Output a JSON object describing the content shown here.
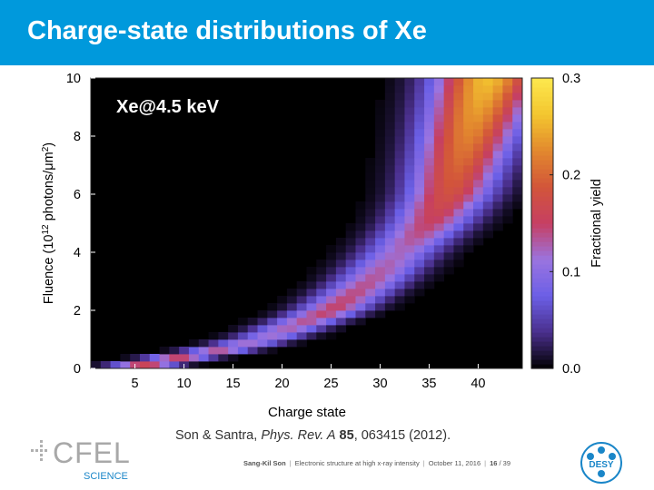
{
  "slide": {
    "title": "Charge-state distributions of Xe",
    "reference": {
      "authors": "Son & Santra, ",
      "journal": "Phys. Rev. A",
      "volume": "85",
      "rest": ", 063415 (2012)."
    },
    "footer": {
      "author": "Sang-Kil Son",
      "talk": "Electronic structure at high x-ray intensity",
      "date": "October 11, 2016",
      "page": "16",
      "total": "/ 39"
    },
    "logos": {
      "cfel_text": "CFEL",
      "cfel_subtext": "SCIENCE",
      "desy_text": "DESY"
    },
    "colors": {
      "title_bar": "#0099dc",
      "title_text": "#ffffff"
    }
  },
  "chart_data": {
    "type": "heatmap",
    "annotation": "Xe@4.5 keV",
    "xlabel": "Charge state",
    "ylabel_parts": [
      "Fluence (10",
      "12",
      " photons/",
      "μm",
      "2",
      ")"
    ],
    "x_ticks": [
      "5",
      "10",
      "15",
      "20",
      "25",
      "30",
      "35",
      "40"
    ],
    "y_ticks": [
      "0",
      "2",
      "4",
      "6",
      "8",
      "10"
    ],
    "xlim": [
      0.5,
      44.5
    ],
    "ylim": [
      0,
      10
    ],
    "colorbar": {
      "label": "Fractional yield",
      "ticks": [
        "0.0",
        "0.1",
        "0.2",
        "0.3"
      ],
      "range": [
        0,
        0.3
      ],
      "colors": [
        "#000000",
        "#4a2f8c",
        "#6b5fe6",
        "#9a74e0",
        "#c63f63",
        "#d2553a",
        "#e2882e",
        "#f3c62f",
        "#fde84e"
      ]
    },
    "peak_charge_vs_fluence": {
      "fluence": [
        0.2,
        0.5,
        1.0,
        2.0,
        3.0,
        4.0,
        5.0,
        6.0,
        7.0,
        8.0,
        9.0,
        10.0
      ],
      "charge": [
        6,
        12,
        18,
        25,
        29,
        32,
        35,
        37,
        38,
        39,
        40,
        41
      ]
    },
    "peak_yield_vs_fluence": {
      "fluence": [
        0.2,
        1.0,
        2.0,
        4.0,
        6.0,
        8.0,
        10.0
      ],
      "yield": [
        0.16,
        0.11,
        0.15,
        0.12,
        0.18,
        0.22,
        0.26
      ]
    }
  }
}
